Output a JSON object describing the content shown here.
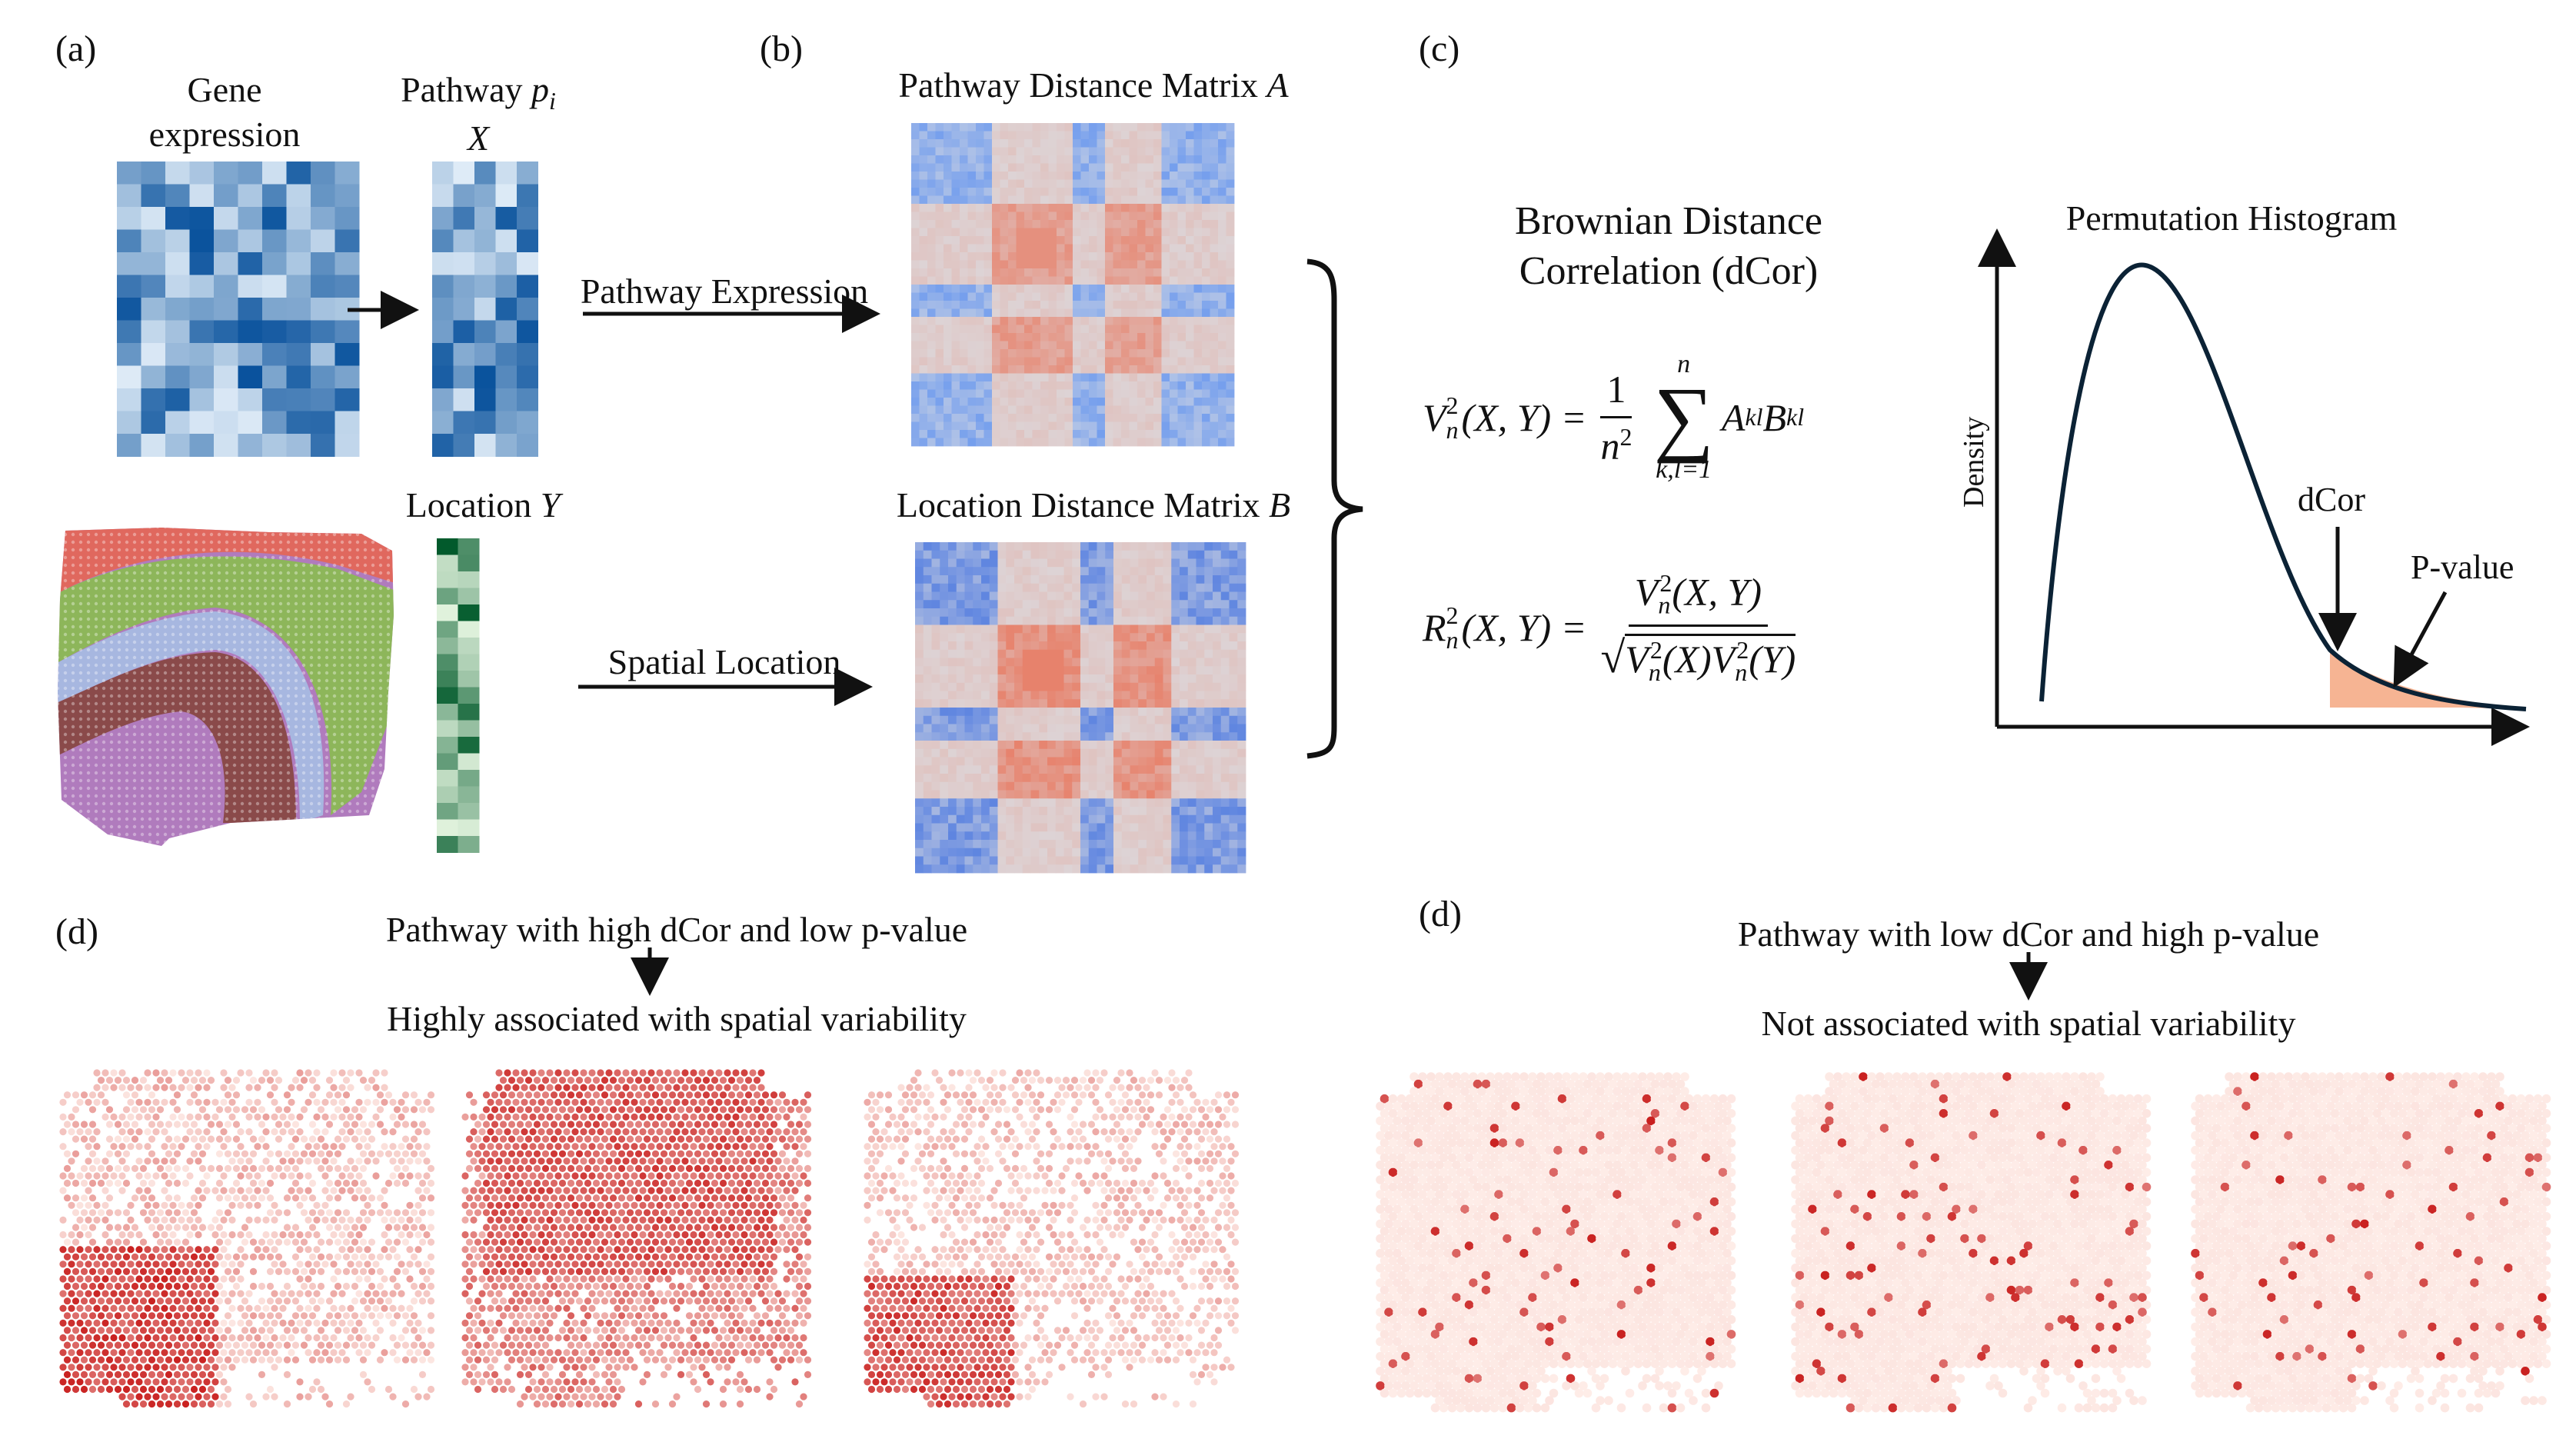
{
  "panels": {
    "a": {
      "tag": "(a)",
      "gene_expression_line1": "Gene",
      "gene_expression_line2": "expression",
      "pathway_line1_text": "Pathway ",
      "pathway_symbol": "p",
      "pathway_subscript": "i",
      "pathway_var": "X",
      "location_text": "Location ",
      "location_var": "Y"
    },
    "b": {
      "tag": "(b)",
      "pathway_matrix_text": "Pathway Distance Matrix ",
      "pathway_matrix_var": "A",
      "location_matrix_text": "Location Distance Matrix ",
      "location_matrix_var": "B",
      "pathway_arrow_label": "Pathway Expression",
      "spatial_arrow_label": "Spatial Location"
    },
    "c": {
      "tag": "(c)",
      "dcor_title_line1": "Brownian Distance",
      "dcor_title_line2": "Correlation (dCor)",
      "histogram_title": "Permutation Histogram",
      "density_label": "Density",
      "dcor_marker": "dCor",
      "pvalue_marker": "P-value"
    },
    "d_left": {
      "tag": "(d)",
      "line1": "Pathway with high dCor and low p-value",
      "line2": "Highly associated with spatial variability"
    },
    "d_right": {
      "tag": "(d)",
      "line1": "Pathway with low dCor and high p-value",
      "line2": "Not associated with spatial variability"
    }
  },
  "formulas": {
    "v_lhs": "V",
    "v_args": "(X, Y) =",
    "sum_upper": "n",
    "sum_lower": "k,l=1",
    "frac_num": "1",
    "frac_den": "n",
    "terms": "A",
    "term_sub_a": "kl",
    "term_b": "B",
    "term_sub_b": "kl",
    "r_lhs": "R",
    "r_args": "(X, Y) =",
    "r_num": "(X, Y)",
    "r_den": "(X)",
    "r_den2": "(Y)"
  },
  "colors": {
    "blue_dark": "#08519c",
    "blue_light": "#deebf7",
    "green_dark": "#00592a",
    "green_light": "#e5f5e0",
    "matrix_blue": "#5b8ff0",
    "matrix_red": "#e8785f",
    "histogram_line": "#0b2235",
    "pvalue_fill": "#f6b493",
    "spot_red": "#c9201f"
  }
}
